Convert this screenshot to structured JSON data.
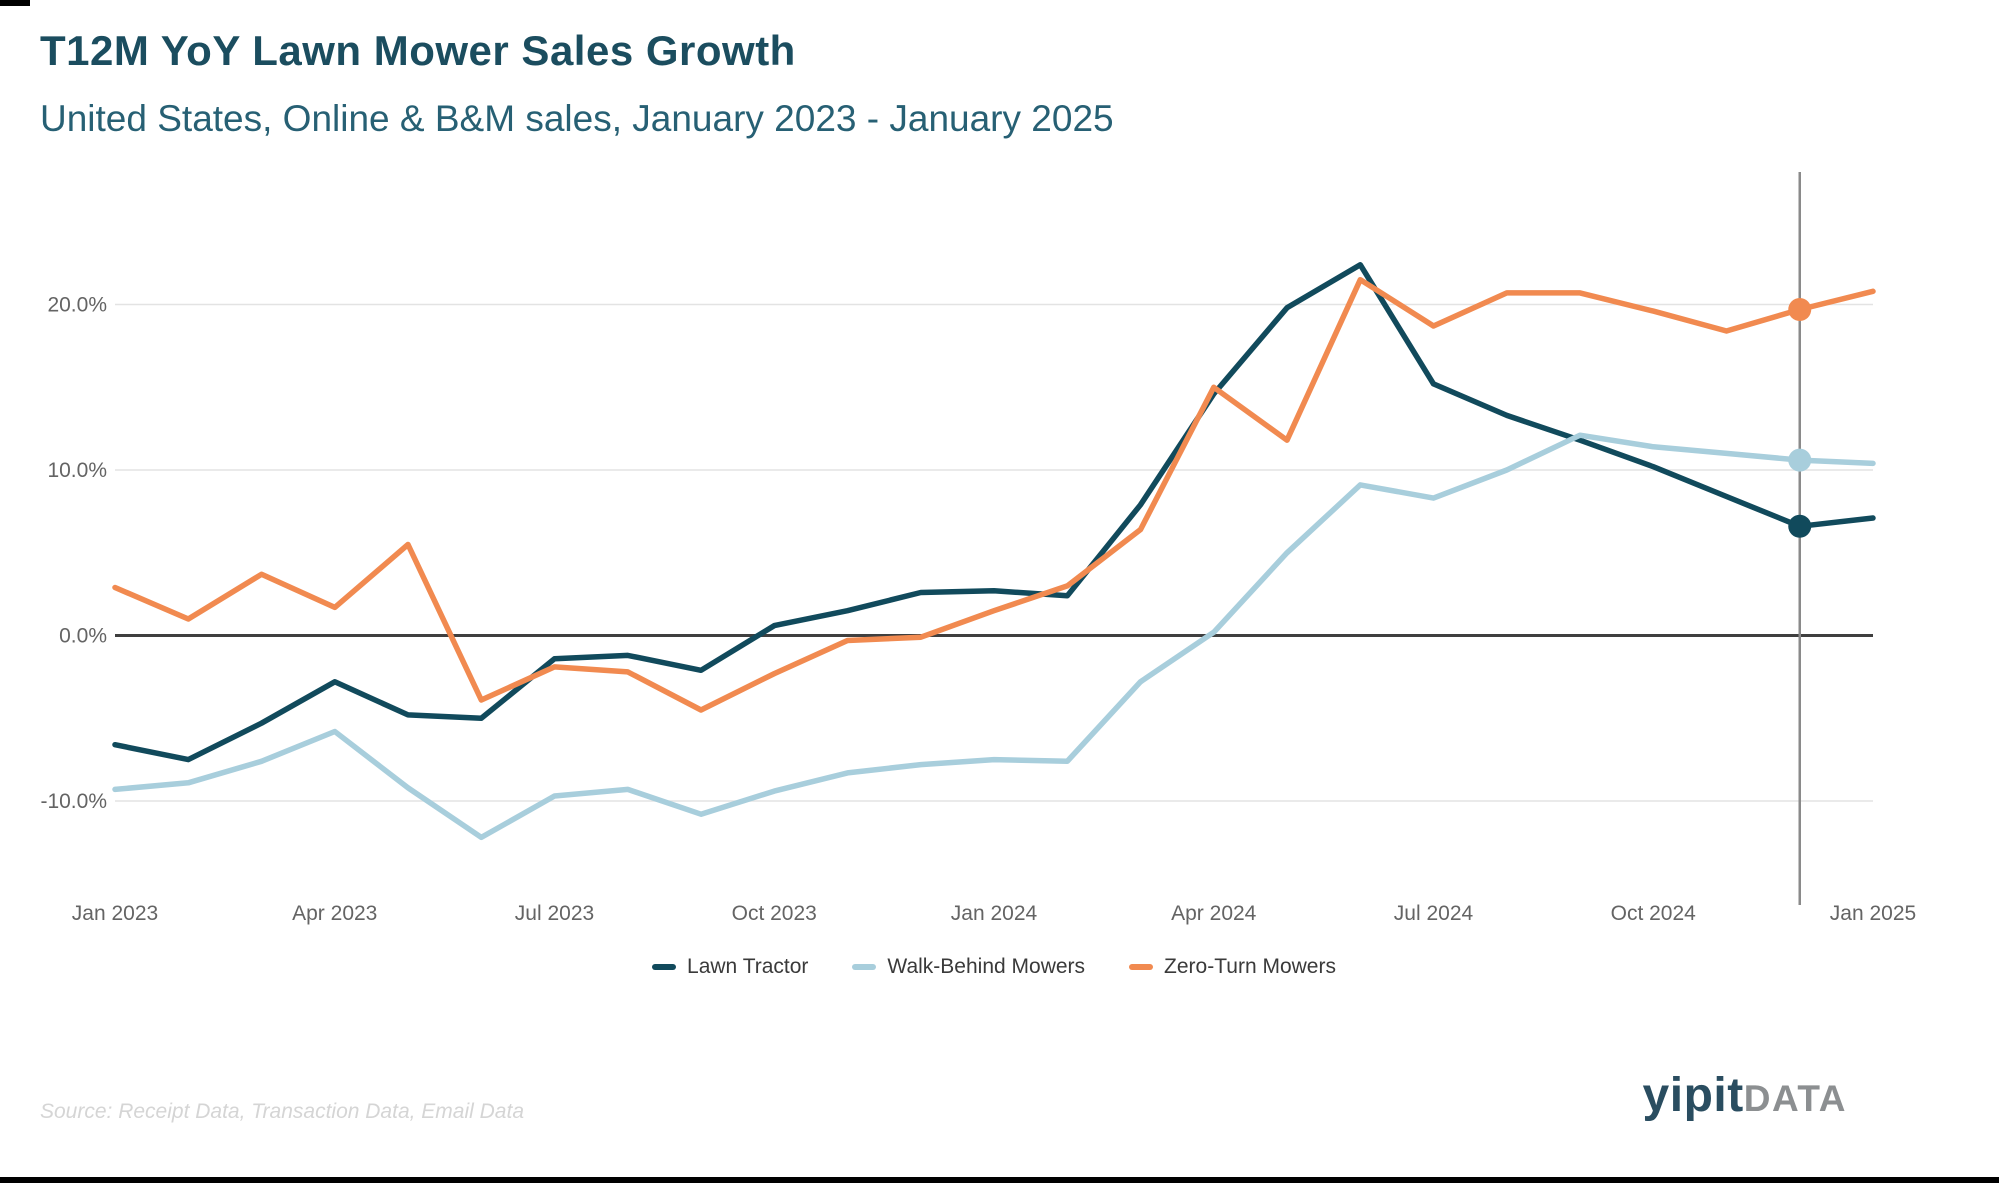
{
  "header": {
    "title": "T12M YoY Lawn Mower Sales Growth",
    "subtitle": "United States, Online & B&M sales, January 2023 - January 2025"
  },
  "chart_data": {
    "type": "line",
    "x": [
      "Jan 2023",
      "Feb 2023",
      "Mar 2023",
      "Apr 2023",
      "May 2023",
      "Jun 2023",
      "Jul 2023",
      "Aug 2023",
      "Sep 2023",
      "Oct 2023",
      "Nov 2023",
      "Dec 2023",
      "Jan 2024",
      "Feb 2024",
      "Mar 2024",
      "Apr 2024",
      "May 2024",
      "Jun 2024",
      "Jul 2024",
      "Aug 2024",
      "Sep 2024",
      "Oct 2024",
      "Nov 2024",
      "Dec 2024",
      "Jan 2025"
    ],
    "x_tick_indices": [
      0,
      3,
      6,
      9,
      12,
      15,
      18,
      21,
      24
    ],
    "y_ticks": [
      {
        "value": 20,
        "label": "20.0%"
      },
      {
        "value": 10,
        "label": "10.0%"
      },
      {
        "value": 0,
        "label": "0.0%"
      },
      {
        "value": -10,
        "label": "-10.0%"
      }
    ],
    "ylim": [
      -14,
      28
    ],
    "grid": "horizontal",
    "legend_position": "bottom",
    "highlight_index": 23,
    "series": [
      {
        "name": "Lawn Tractor",
        "color": "#114A5C",
        "values": [
          -6.6,
          -7.5,
          -5.3,
          -2.8,
          -4.8,
          -5.0,
          -1.4,
          -1.2,
          -2.1,
          0.6,
          1.5,
          2.6,
          2.7,
          2.4,
          7.9,
          14.6,
          19.8,
          22.4,
          15.2,
          13.3,
          11.8,
          10.2,
          8.4,
          6.6,
          7.1
        ]
      },
      {
        "name": "Walk-Behind Mowers",
        "color": "#A8CEDC",
        "values": [
          -9.3,
          -8.9,
          -7.6,
          -5.8,
          -9.2,
          -12.2,
          -9.7,
          -9.3,
          -10.8,
          -9.4,
          -8.3,
          -7.8,
          -7.5,
          -7.6,
          -2.8,
          0.2,
          5.0,
          9.1,
          8.3,
          10.0,
          12.1,
          11.4,
          11.0,
          10.6,
          10.4
        ]
      },
      {
        "name": "Zero-Turn Mowers",
        "color": "#F18A50",
        "values": [
          2.9,
          1.0,
          3.7,
          1.7,
          5.5,
          -3.9,
          -1.9,
          -2.2,
          -4.5,
          -2.3,
          -0.3,
          -0.1,
          1.5,
          3.0,
          6.4,
          15.0,
          11.8,
          21.5,
          18.7,
          20.7,
          20.7,
          19.6,
          18.4,
          19.7,
          20.8
        ]
      }
    ],
    "axis_colors": {
      "grid": "#e3e3e3",
      "zero_line": "#3f3f3f",
      "marker_line": "#8a8a8a",
      "tick_text": "#646464"
    }
  },
  "footer": {
    "source": "Source: Receipt Data, Transaction Data, Email Data",
    "logo_part1": "yipit",
    "logo_part2": "DATA"
  }
}
